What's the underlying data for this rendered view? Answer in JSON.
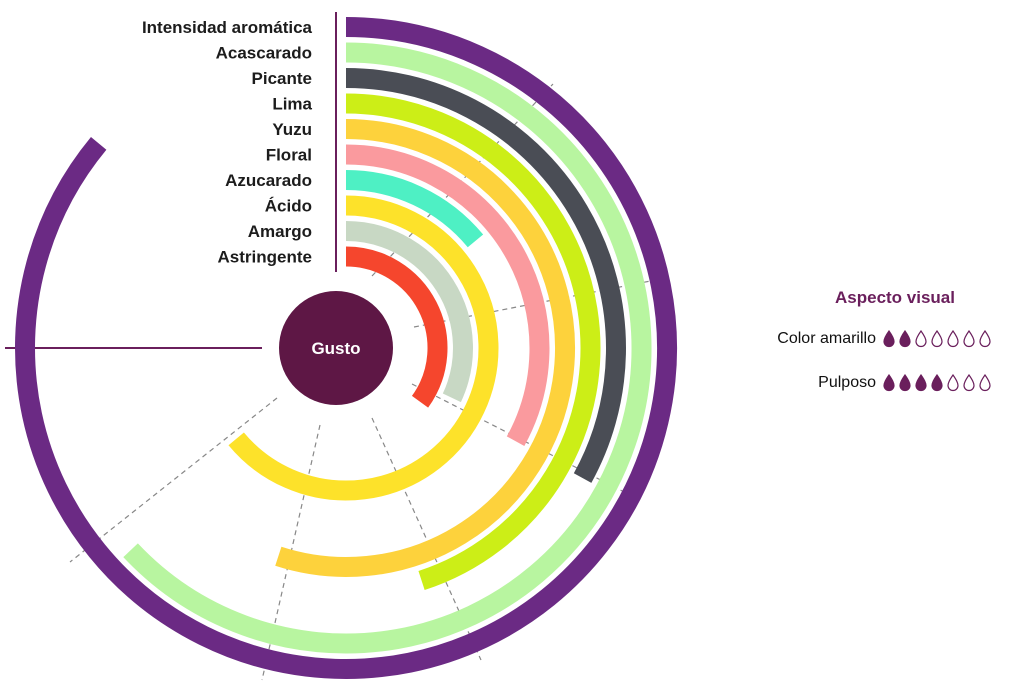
{
  "chart_data": {
    "type": "radial-bar",
    "title": "",
    "center_label": "Gusto",
    "categories": [
      "Intensidad aromática",
      "Acascarado",
      "Picante",
      "Lima",
      "Yuzu",
      "Floral",
      "Azucarado",
      "Ácido",
      "Amargo",
      "Astringente"
    ],
    "values": [
      8.6,
      6.3,
      3.3,
      4.5,
      5.5,
      3.3,
      1.4,
      6.4,
      3.2,
      3.5
    ],
    "max_value": 10,
    "colors": [
      "#6b2a84",
      "#b8f5a0",
      "#4a4d55",
      "#ccee17",
      "#fdd23c",
      "#fa9a9e",
      "#4ef0c4",
      "#fde22a",
      "#c8d8c4",
      "#f5462d"
    ],
    "center_color": "#5e1745"
  },
  "legend": {
    "title": "Aspecto visual",
    "drop_color": "#6a1f5c",
    "rows": [
      {
        "label": "Color amarillo",
        "filled": 2,
        "total": 7
      },
      {
        "label": "Pulposo",
        "filled": 4,
        "total": 7
      }
    ]
  }
}
